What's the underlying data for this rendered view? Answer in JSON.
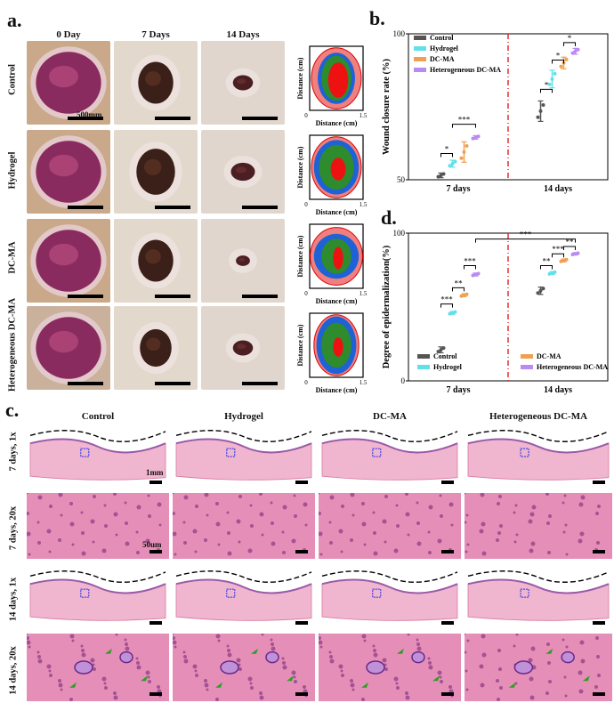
{
  "panel_a": {
    "letter": "a.",
    "columns": [
      "0 Day",
      "7 Days",
      "14 Days"
    ],
    "rows": [
      "Control",
      "Hydrogel",
      "DC-MA",
      "Heterogeneous DC-MA"
    ],
    "scale_label": "500mm",
    "contour": {
      "xlabel": "Distance (cm)",
      "ylabel": "Distance (cm)",
      "ticks": [
        "0",
        "1.5"
      ]
    },
    "colors": {
      "day0": "#f08080",
      "day7": "#2e8b2e",
      "day14": "#1e62d6",
      "core": "#ee1111"
    }
  },
  "panel_b": {
    "letter": "b."
  },
  "panel_d": {
    "letter": "d."
  },
  "panel_c": {
    "letter": "c.",
    "columns": [
      "Control",
      "Hydrogel",
      "DC-MA",
      "Heterogeneous DC-MA"
    ],
    "rows": [
      "7 days, 1x",
      "7 days, 20x",
      "14 days, 1x",
      "14 days, 20x"
    ],
    "scale_1x": "1mm",
    "scale_20x": "50um"
  },
  "chart_data": [
    {
      "type": "scatter",
      "title": "",
      "ylabel": "Wound closure rate (%)",
      "xlabel": "",
      "categories": [
        "7 days",
        "14 days"
      ],
      "ylim": [
        50,
        100
      ],
      "yticks": [
        50,
        100
      ],
      "legend": "top-left",
      "series": [
        {
          "name": "Control",
          "color": "#555555",
          "values": [
            {
              "mean": 51.5,
              "sd": 0.8
            },
            {
              "mean": 73.5,
              "sd": 3.5
            }
          ]
        },
        {
          "name": "Hydrogel",
          "color": "#5fe0ea",
          "values": [
            {
              "mean": 55.5,
              "sd": 1.2
            },
            {
              "mean": 84.5,
              "sd": 3.0
            }
          ]
        },
        {
          "name": "DC-MA",
          "color": "#f0a050",
          "values": [
            {
              "mean": 59.5,
              "sd": 3.5
            },
            {
              "mean": 90.0,
              "sd": 2.0
            }
          ]
        },
        {
          "name": "Heterogeneous DC-MA",
          "color": "#b98bf0",
          "values": [
            {
              "mean": 64.5,
              "sd": 0.6
            },
            {
              "mean": 94.0,
              "sd": 1.0
            }
          ]
        }
      ],
      "annotations": [
        "*",
        "***",
        "*",
        "*",
        "*"
      ],
      "divider_between": [
        "7 days",
        "14 days"
      ]
    },
    {
      "type": "scatter",
      "title": "",
      "ylabel": "Degree of epidermalization(%)",
      "xlabel": "",
      "categories": [
        "7 days",
        "14 days"
      ],
      "ylim": [
        0,
        100
      ],
      "yticks": [
        0,
        100
      ],
      "legend": "bottom",
      "series": [
        {
          "name": "Control",
          "color": "#555555",
          "values": [
            {
              "mean": 21.0,
              "sd": 2.0
            },
            {
              "mean": 61.0,
              "sd": 2.5
            }
          ]
        },
        {
          "name": "Hydrogel",
          "color": "#5fe0ea",
          "values": [
            {
              "mean": 46.0,
              "sd": 1.0
            },
            {
              "mean": 73.0,
              "sd": 1.0
            }
          ]
        },
        {
          "name": "DC-MA",
          "color": "#f0a050",
          "values": [
            {
              "mean": 58.0,
              "sd": 1.0
            },
            {
              "mean": 81.5,
              "sd": 1.0
            }
          ]
        },
        {
          "name": "Heterogeneous DC-MA",
          "color": "#b98bf0",
          "values": [
            {
              "mean": 72.0,
              "sd": 1.0
            },
            {
              "mean": 86.0,
              "sd": 0.8
            }
          ]
        }
      ],
      "annotations": [
        "***",
        "**",
        "***",
        "**",
        "***",
        "**",
        "***"
      ],
      "divider_between": [
        "7 days",
        "14 days"
      ]
    }
  ]
}
